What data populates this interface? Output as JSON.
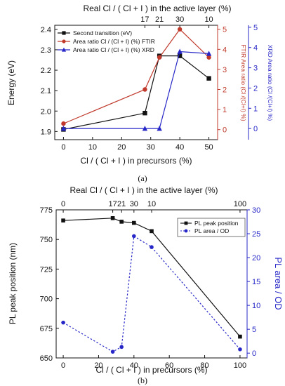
{
  "chart_data": [
    {
      "id": "a",
      "type": "line",
      "caption": "(a)",
      "xlabel": "Cl / ( Cl + I ) in precursors (%)",
      "top_xlabel": "Real Cl / ( Cl + I ) in the active layer (%)",
      "ylabel_left": "Energy (eV)",
      "ylabel_right_inner": "FTIR Area ratio (Cl /(Cl+I) %)",
      "ylabel_right_outer": "XRD Area ratio (Cl /(Cl+I) %)",
      "x_ticks": [
        "0",
        "10",
        "20",
        "30",
        "40",
        "50"
      ],
      "xlim": [
        -3,
        53
      ],
      "top_ticks": [
        {
          "x": 28,
          "label": "17"
        },
        {
          "x": 33,
          "label": "21"
        },
        {
          "x": 40,
          "label": "30"
        },
        {
          "x": 50,
          "label": "10"
        }
      ],
      "y_left_ticks": [
        "1.9",
        "2.0",
        "2.1",
        "2.2",
        "2.3",
        "2.4"
      ],
      "ylim_left": [
        1.86,
        2.42
      ],
      "y_right_inner_ticks": [
        "0",
        "1",
        "2",
        "3",
        "4",
        "5"
      ],
      "ylim_right_inner": [
        -0.5,
        5.2
      ],
      "y_right_outer_ticks": [
        "0",
        "1",
        "2",
        "3",
        "4",
        "5"
      ],
      "ylim_right_outer": [
        -0.55,
        5.1
      ],
      "colors": {
        "black": "#111111",
        "red": "#c0392b",
        "blue": "#2727c8"
      },
      "series": [
        {
          "name": "Second transition (eV)",
          "axis": "left",
          "marker": "square",
          "color": "#111111",
          "x": [
            0,
            28,
            33,
            40,
            50
          ],
          "y": [
            1.91,
            1.99,
            2.27,
            2.27,
            2.16
          ]
        },
        {
          "name": "Area ratio Cl / (Cl + I) (%) FTIR",
          "axis": "right_inner",
          "marker": "circle",
          "color": "#c0392b",
          "x": [
            0,
            28,
            33,
            40,
            50
          ],
          "y": [
            0.3,
            2.0,
            3.6,
            5.0,
            3.6
          ]
        },
        {
          "name": "Area ratio Cl / (Cl + I) (%) XRD",
          "axis": "right_outer",
          "marker": "triangle",
          "color": "#2727c8",
          "x": [
            0,
            28,
            33,
            40,
            50
          ],
          "y": [
            0,
            0,
            0,
            3.8,
            3.7
          ]
        }
      ]
    },
    {
      "id": "b",
      "type": "line",
      "caption": "(b)",
      "xlabel": "Cl / ( Cl + I ) in precursors (%)",
      "top_xlabel": "Real Cl / ( Cl + I ) in the active layer (%)",
      "ylabel_left": "PL peak position (nm)",
      "ylabel_right": "PL area / OD",
      "x_ticks": [
        "0",
        "20",
        "40",
        "60",
        "80",
        "100"
      ],
      "xlim": [
        -4,
        104
      ],
      "top_ticks": [
        {
          "x": 0,
          "label": "0"
        },
        {
          "x": 28,
          "label": "17"
        },
        {
          "x": 33,
          "label": "21"
        },
        {
          "x": 40,
          "label": "30"
        },
        {
          "x": 50,
          "label": "10"
        },
        {
          "x": 100,
          "label": "100"
        }
      ],
      "y_left_ticks": [
        "650",
        "675",
        "700",
        "725",
        "750",
        "775"
      ],
      "ylim_left": [
        650,
        775
      ],
      "y_right_ticks": [
        "0",
        "5",
        "10",
        "15",
        "20",
        "25",
        "30"
      ],
      "ylim_right": [
        -1,
        30
      ],
      "colors": {
        "black": "#111111",
        "blue": "#2727c8"
      },
      "series": [
        {
          "name": "PL peak position",
          "axis": "left",
          "marker": "square",
          "color": "#111111",
          "dashed": false,
          "x": [
            0,
            28,
            33,
            40,
            50,
            100
          ],
          "y": [
            766,
            768,
            765,
            764,
            757,
            668
          ]
        },
        {
          "name": "PL area / OD",
          "axis": "right",
          "marker": "circle",
          "color": "#2727c8",
          "dashed": true,
          "x": [
            0,
            28,
            33,
            40,
            50,
            100
          ],
          "y": [
            6.4,
            0.3,
            1.3,
            24.5,
            22.2,
            0.8
          ]
        }
      ]
    }
  ]
}
